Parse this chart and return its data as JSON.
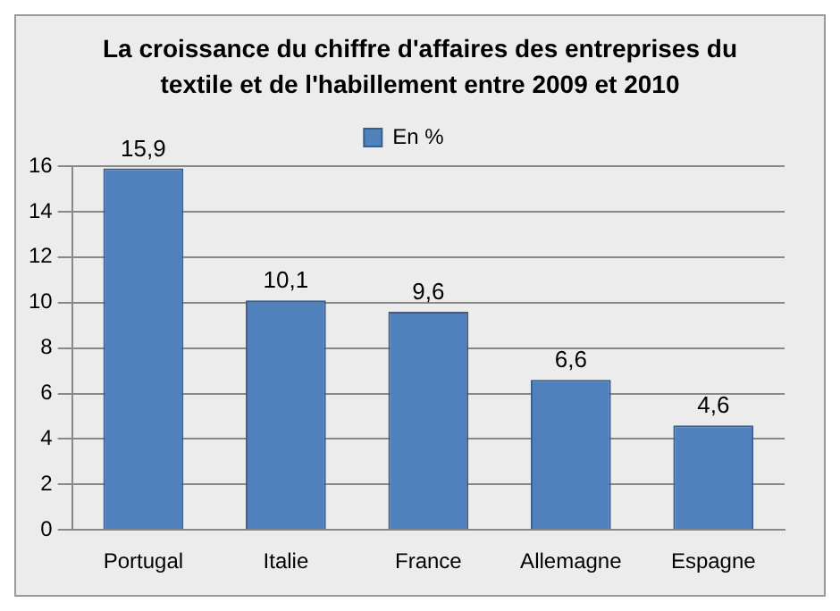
{
  "chart_data": {
    "type": "bar",
    "title": "La croissance du chiffre d'affaires des entreprises du textile et de l'habillement entre 2009 et 2010",
    "categories": [
      "Portugal",
      "Italie",
      "France",
      "Allemagne",
      "Espagne"
    ],
    "series": [
      {
        "name": "En %",
        "color": "#4f81bd",
        "values": [
          15.9,
          10.1,
          9.6,
          6.6,
          4.6
        ],
        "value_labels": [
          "15,9",
          "10,1",
          "9,6",
          "6,6",
          "4,6"
        ]
      }
    ],
    "ylim": [
      0,
      16
    ],
    "yticks": [
      0,
      2,
      4,
      6,
      8,
      10,
      12,
      14,
      16
    ],
    "grid": "y",
    "legend": "top"
  }
}
